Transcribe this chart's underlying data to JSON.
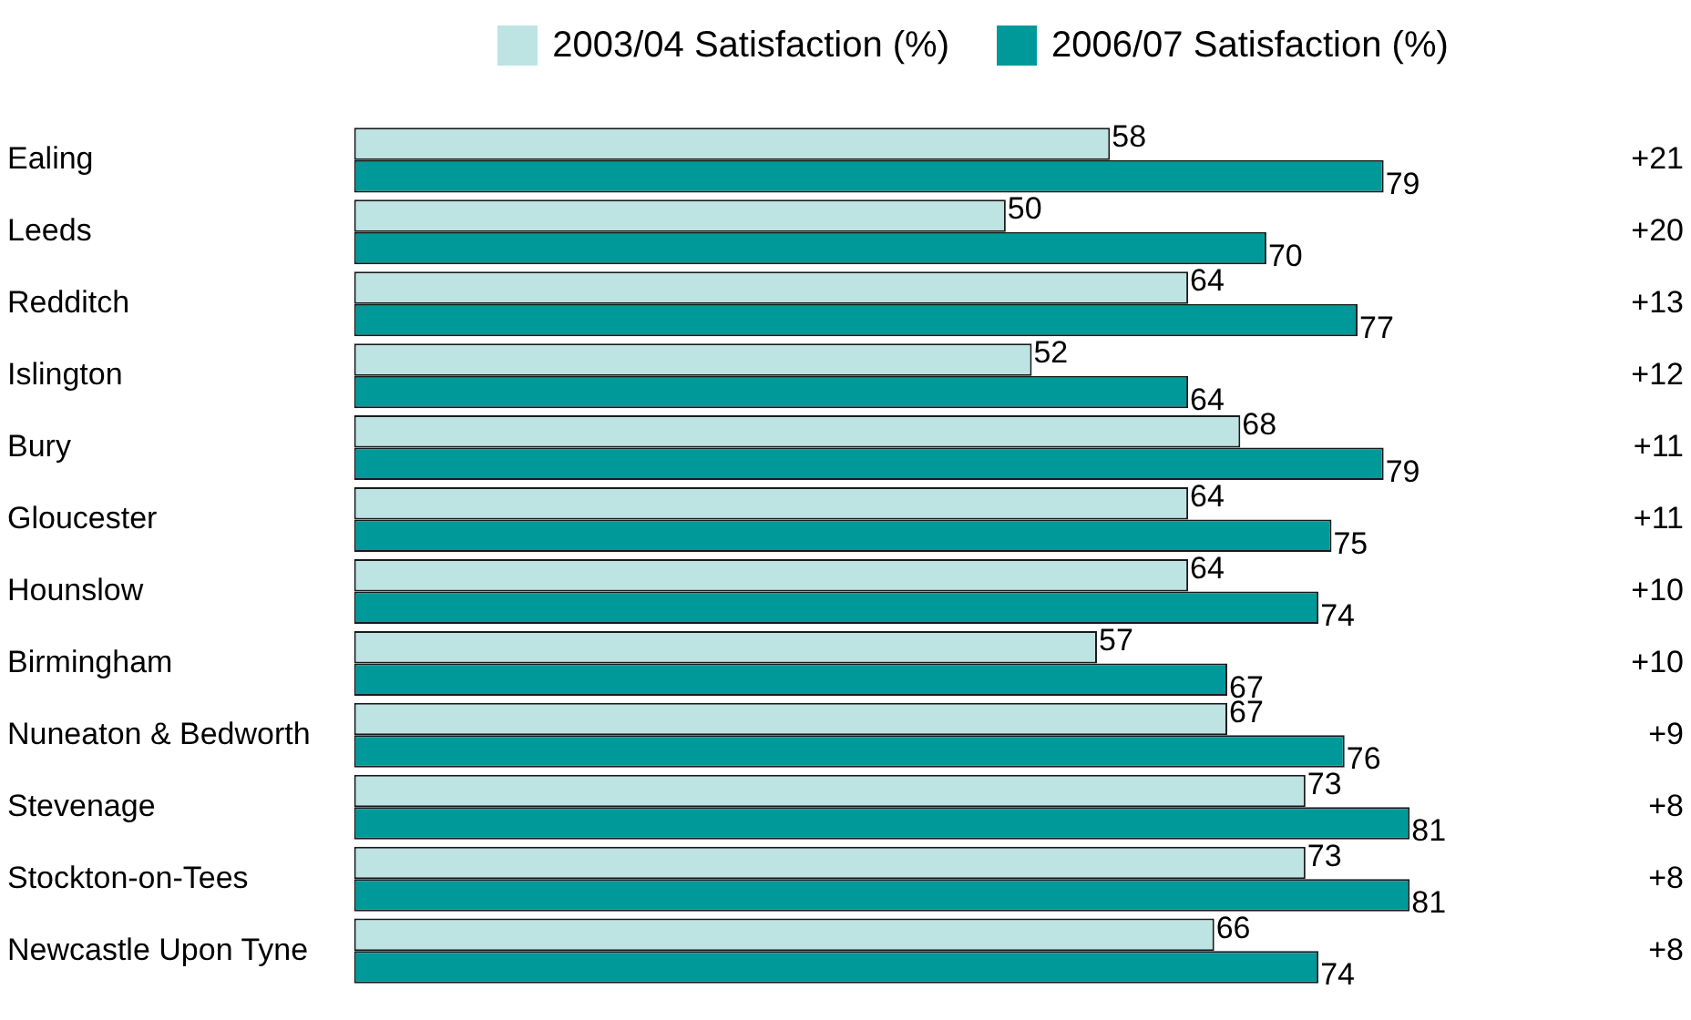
{
  "chart_data": {
    "type": "bar",
    "orientation": "horizontal",
    "categories": [
      "Ealing",
      "Leeds",
      "Redditch",
      "Islington",
      "Bury",
      "Gloucester",
      "Hounslow",
      "Birmingham",
      "Nuneaton & Bedworth",
      "Stevenage",
      "Stockton-on-Tees",
      "Newcastle Upon Tyne"
    ],
    "series": [
      {
        "name": "2003/04 Satisfaction (%)",
        "color": "#bde3e3",
        "values": [
          58,
          50,
          64,
          52,
          68,
          64,
          64,
          57,
          67,
          73,
          73,
          66
        ]
      },
      {
        "name": "2006/07 Satisfaction (%)",
        "color": "#009999",
        "values": [
          79,
          70,
          77,
          64,
          79,
          75,
          74,
          67,
          76,
          81,
          81,
          74
        ]
      }
    ],
    "tick_labels": "y",
    "legend": "top",
    "data_labels": true,
    "annotations": [
      "+21",
      "+20",
      "+13",
      "+12",
      "+11",
      "+11",
      "+10",
      "+10",
      "+9",
      "+8",
      "+8",
      "+8"
    ]
  }
}
